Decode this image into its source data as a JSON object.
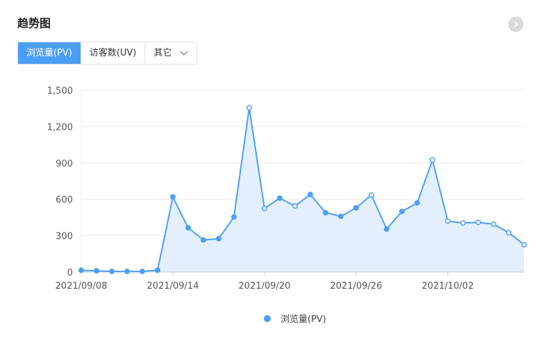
{
  "header": {
    "title": "趋势图"
  },
  "tabs": [
    {
      "label": "浏览量(PV)",
      "active": true
    },
    {
      "label": "访客数(UV)",
      "active": false
    },
    {
      "label": "其它",
      "active": false,
      "dropdown": true
    }
  ],
  "colors": {
    "accent": "#4a9ff5",
    "area": "#e3effc",
    "grid": "#ececec",
    "axis": "#cfcfcf"
  },
  "chart_data": {
    "type": "area",
    "x": [
      "2021/09/08",
      "2021/09/09",
      "2021/09/10",
      "2021/09/11",
      "2021/09/12",
      "2021/09/13",
      "2021/09/14",
      "2021/09/15",
      "2021/09/16",
      "2021/09/17",
      "2021/09/18",
      "2021/09/19",
      "2021/09/20",
      "2021/09/21",
      "2021/09/22",
      "2021/09/23",
      "2021/09/24",
      "2021/09/25",
      "2021/09/26",
      "2021/09/27",
      "2021/09/28",
      "2021/09/29",
      "2021/09/30",
      "2021/10/01",
      "2021/10/02",
      "2021/10/03",
      "2021/10/04",
      "2021/10/05",
      "2021/10/06",
      "2021/10/07"
    ],
    "x_tick_labels": [
      "2021/09/08",
      "2021/09/14",
      "2021/09/20",
      "2021/09/26",
      "2021/10/02"
    ],
    "series": [
      {
        "name": "浏览量(PV)",
        "values": [
          15,
          10,
          5,
          5,
          5,
          15,
          620,
          365,
          265,
          275,
          455,
          1355,
          525,
          610,
          545,
          640,
          490,
          460,
          530,
          635,
          355,
          500,
          570,
          925,
          420,
          405,
          410,
          395,
          325,
          225
        ]
      }
    ],
    "y_ticks": [
      "0",
      "300",
      "600",
      "900",
      "1,200",
      "1,500"
    ],
    "ylim": [
      0,
      1500
    ],
    "grid": true,
    "legend": "bottom"
  }
}
